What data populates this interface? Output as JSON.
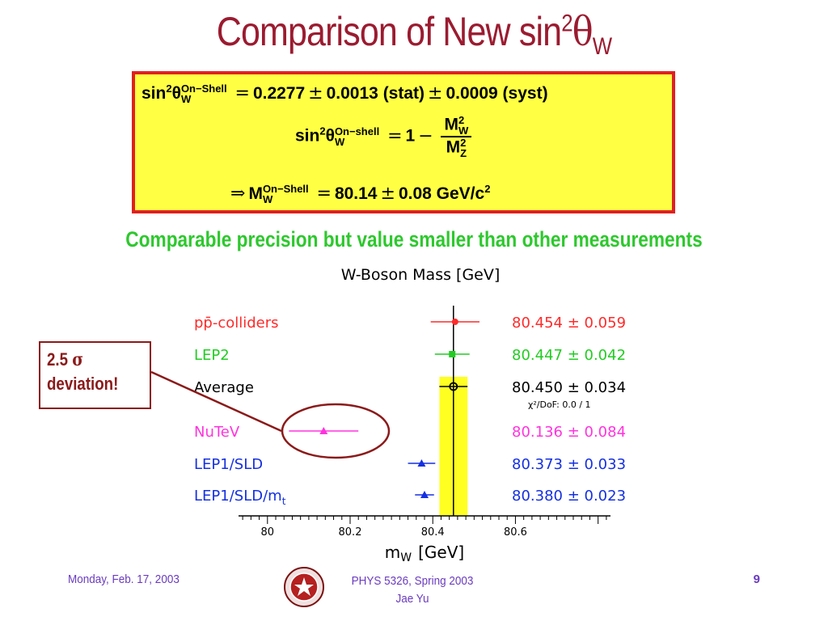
{
  "slide": {
    "title_main": "Comparison of New sin",
    "title_sup": "2",
    "title_theta": "θ",
    "title_sub": "W",
    "equations": {
      "eq1": {
        "lhs": "sin",
        "sup": "2",
        "theta": "θ",
        "sub": "W",
        "script": "On−Shell",
        "rel": "=",
        "value": "0.2277",
        "pm1": "±",
        "stat": "0.0013",
        "stat_label": "(stat)",
        "pm2": "±",
        "syst": "0.0009",
        "syst_label": "(syst)"
      },
      "eq2": {
        "lhs": "sin",
        "sup": "2",
        "theta": "θ",
        "sub": "W",
        "script": "On−shell",
        "rel": "=",
        "one": "1",
        "minus": "−",
        "num_M": "M",
        "num_sup": "2",
        "num_sub": "W",
        "den_M": "M",
        "den_sup": "2",
        "den_sub": "Z"
      },
      "eq3": {
        "implies": "⇒",
        "M": "M",
        "sub": "W",
        "script": "On−Shell",
        "rel": "=",
        "value": "80.14",
        "pm": "±",
        "err": "0.08",
        "unit": "GeV/c",
        "unit_sup": "2"
      }
    },
    "subtitle": "Comparable precision but value smaller than other measurements",
    "callout": {
      "line1_num": "2.5 ",
      "line1_sym": "σ",
      "line2": "deviation!"
    },
    "footer": {
      "date": "Monday, Feb. 17, 2003",
      "course": "PHYS 5326, Spring 2003",
      "author": "Jae Yu",
      "page": "9"
    }
  },
  "chart_data": {
    "type": "scatter",
    "title": "W-Boson Mass  [GeV]",
    "xlabel_main": "m",
    "xlabel_sub": "W",
    "xlabel_unit": "[GeV]",
    "xlim": [
      79.93,
      80.83
    ],
    "xticks": [
      "80",
      "80.2",
      "80.4",
      "80.6"
    ],
    "xtick_values": [
      80.0,
      80.2,
      80.4,
      80.6
    ],
    "average_band": {
      "center": 80.45,
      "error": 0.034
    },
    "chi2_label": "χ²/DoF: 0.0 / 1",
    "colors": {
      "ppbar": "#ff2a2a",
      "lep2": "#22cc22",
      "average": "#000000",
      "nutev": "#ff33dd",
      "lep1sld": "#1530e0",
      "band": "#ffff22"
    },
    "points": [
      {
        "label": "pp̄-colliders",
        "value": 80.454,
        "error": 0.059,
        "text": "80.454 ± 0.059",
        "marker": "circle",
        "color": "#ff2a2a"
      },
      {
        "label": "LEP2",
        "value": 80.447,
        "error": 0.042,
        "text": "80.447 ± 0.042",
        "marker": "square",
        "color": "#22cc22"
      },
      {
        "label": "Average",
        "value": 80.45,
        "error": 0.034,
        "text": "80.450 ± 0.034",
        "marker": "open-circle",
        "color": "#000000"
      },
      {
        "label": "NuTeV",
        "value": 80.136,
        "error": 0.084,
        "text": "80.136 ± 0.084",
        "marker": "triangle",
        "color": "#ff33dd"
      },
      {
        "label": "LEP1/SLD",
        "value": 80.373,
        "error": 0.033,
        "text": "80.373 ± 0.033",
        "marker": "triangle",
        "color": "#1530e0"
      },
      {
        "label": "LEP1/SLD/m",
        "label_sub": "t",
        "value": 80.38,
        "error": 0.023,
        "text": "80.380 ± 0.023",
        "marker": "triangle",
        "color": "#1530e0"
      }
    ]
  }
}
